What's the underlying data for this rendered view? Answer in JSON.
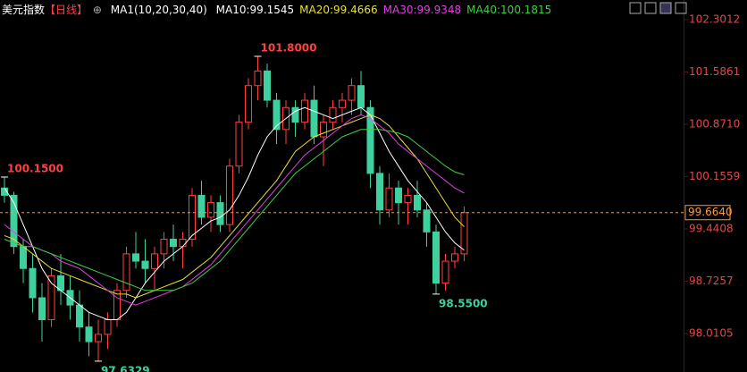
{
  "chart_data": {
    "type": "candlestick",
    "header": {
      "name": "美元指数",
      "period": "【日线】",
      "indicator": "MA1(10,20,30,40)"
    },
    "ylim": [
      97.485,
      102.57
    ],
    "yticks": [
      102.3012,
      101.5861,
      {
        "value": 100.871,
        "label": "100.8710"
      },
      100.1559,
      99.4408,
      98.7257,
      98.0105
    ],
    "up_color": "#ff4040",
    "down_color": "#3fd0a0",
    "open": [
      100.0,
      99.9,
      99.2,
      98.9,
      98.5,
      98.2,
      98.8,
      98.6,
      98.4,
      98.1,
      97.9,
      98.0,
      98.2,
      98.6,
      99.1,
      99.0,
      98.9,
      99.1,
      99.3,
      99.2,
      99.3,
      99.9,
      99.6,
      99.8,
      99.5,
      100.3,
      100.9,
      101.4,
      101.6,
      101.2,
      100.8,
      101.1,
      100.9,
      101.2,
      100.7,
      100.9,
      101.1,
      101.2,
      101.4,
      101.1,
      100.2,
      99.7,
      100.0,
      99.8,
      99.9,
      99.7,
      99.4,
      98.7,
      99.0,
      99.1
    ],
    "high": [
      100.15,
      99.95,
      99.3,
      99.1,
      98.7,
      98.9,
      99.1,
      98.8,
      98.6,
      98.3,
      98.2,
      98.3,
      98.7,
      99.2,
      99.4,
      99.3,
      99.2,
      99.4,
      99.5,
      99.4,
      100.0,
      100.1,
      99.9,
      99.9,
      100.4,
      101.0,
      101.5,
      101.8,
      101.7,
      101.3,
      101.2,
      101.2,
      101.3,
      101.4,
      101.0,
      101.2,
      101.3,
      101.5,
      101.6,
      101.2,
      100.3,
      100.2,
      100.1,
      100.0,
      100.1,
      99.8,
      99.5,
      99.1,
      99.2,
      99.75
    ],
    "low": [
      99.8,
      99.1,
      98.7,
      98.3,
      97.9,
      98.1,
      98.4,
      98.2,
      97.9,
      97.7,
      97.6329,
      97.8,
      98.1,
      98.5,
      98.9,
      98.7,
      98.6,
      98.9,
      99.0,
      98.9,
      99.2,
      99.5,
      99.4,
      99.4,
      99.4,
      100.2,
      100.8,
      101.2,
      101.1,
      100.6,
      100.6,
      100.7,
      100.8,
      100.6,
      100.3,
      100.8,
      100.9,
      101.0,
      101.0,
      100.0,
      99.5,
      99.6,
      99.5,
      99.5,
      99.6,
      99.2,
      98.55,
      98.6,
      98.9,
      99.0
    ],
    "close": [
      99.9,
      99.2,
      98.9,
      98.5,
      98.2,
      98.8,
      98.6,
      98.4,
      98.1,
      97.9,
      98.0,
      98.2,
      98.6,
      99.1,
      99.0,
      98.9,
      99.1,
      99.3,
      99.2,
      99.3,
      99.9,
      99.6,
      99.8,
      99.5,
      100.3,
      100.9,
      101.4,
      101.6,
      101.2,
      100.8,
      101.1,
      100.9,
      101.2,
      100.7,
      100.9,
      101.1,
      101.2,
      101.4,
      101.1,
      100.2,
      99.7,
      100.0,
      99.8,
      99.9,
      99.7,
      99.4,
      98.7,
      99.0,
      99.1,
      99.664
    ],
    "series": [
      {
        "name": "MA10:99.1545",
        "color": "#ffffff",
        "values": [
          100.0,
          99.8,
          99.5,
          99.2,
          98.9,
          98.7,
          98.6,
          98.5,
          98.4,
          98.3,
          98.25,
          98.2,
          98.2,
          98.3,
          98.5,
          98.7,
          98.85,
          99.0,
          99.1,
          99.2,
          99.35,
          99.45,
          99.55,
          99.6,
          99.7,
          99.9,
          100.15,
          100.45,
          100.7,
          100.85,
          100.95,
          101.05,
          101.1,
          101.05,
          101.0,
          100.95,
          101.0,
          101.05,
          101.1,
          101.0,
          100.75,
          100.5,
          100.3,
          100.1,
          99.95,
          99.8,
          99.6,
          99.4,
          99.25,
          99.15
        ]
      },
      {
        "name": "MA20:99.4666",
        "color": "#e8e030",
        "values": [
          99.35,
          99.3,
          99.2,
          99.1,
          99.0,
          98.9,
          98.85,
          98.8,
          98.75,
          98.7,
          98.65,
          98.6,
          98.55,
          98.55,
          98.5,
          98.55,
          98.6,
          98.65,
          98.7,
          98.75,
          98.85,
          98.95,
          99.05,
          99.2,
          99.35,
          99.5,
          99.65,
          99.8,
          99.95,
          100.1,
          100.3,
          100.5,
          100.6,
          100.7,
          100.75,
          100.8,
          100.85,
          100.9,
          100.95,
          101.0,
          100.95,
          100.85,
          100.7,
          100.55,
          100.4,
          100.2,
          100.0,
          99.8,
          99.6,
          99.47
        ]
      },
      {
        "name": "MA30:99.9348",
        "color": "#e040e0",
        "values": [
          99.5,
          99.4,
          99.3,
          99.2,
          99.15,
          99.1,
          99.0,
          98.95,
          98.9,
          98.8,
          98.7,
          98.6,
          98.5,
          98.45,
          98.4,
          98.45,
          98.5,
          98.55,
          98.6,
          98.65,
          98.75,
          98.85,
          98.95,
          99.1,
          99.25,
          99.4,
          99.55,
          99.7,
          99.85,
          100.0,
          100.15,
          100.3,
          100.45,
          100.55,
          100.65,
          100.75,
          100.85,
          100.95,
          101.0,
          100.95,
          100.85,
          100.75,
          100.6,
          100.5,
          100.4,
          100.3,
          100.2,
          100.1,
          100.0,
          99.93
        ]
      },
      {
        "name": "MA40:100.1815",
        "color": "#40d040",
        "values": [
          99.3,
          99.25,
          99.2,
          99.2,
          99.15,
          99.1,
          99.05,
          99.0,
          98.95,
          98.9,
          98.85,
          98.8,
          98.75,
          98.7,
          98.65,
          98.6,
          98.6,
          98.6,
          98.6,
          98.65,
          98.7,
          98.8,
          98.9,
          99.0,
          99.15,
          99.3,
          99.45,
          99.6,
          99.75,
          99.9,
          100.05,
          100.2,
          100.3,
          100.4,
          100.5,
          100.6,
          100.7,
          100.75,
          100.8,
          100.8,
          100.8,
          100.78,
          100.75,
          100.7,
          100.6,
          100.5,
          100.4,
          100.3,
          100.22,
          100.18
        ]
      }
    ],
    "annotations": [
      {
        "value": 101.8,
        "label": "101.8000",
        "color": "#ff4040"
      },
      {
        "value": 100.15,
        "label": "100.1500",
        "color": "#ff4040"
      },
      {
        "value": 98.55,
        "label": "98.5500",
        "color": "#3fd0a0"
      },
      {
        "value": 97.6329,
        "label": "97.6329",
        "color": "#3fd0a0"
      }
    ],
    "last_price": {
      "value": 99.664,
      "label": "99.6640",
      "color": "#ff9933"
    }
  }
}
